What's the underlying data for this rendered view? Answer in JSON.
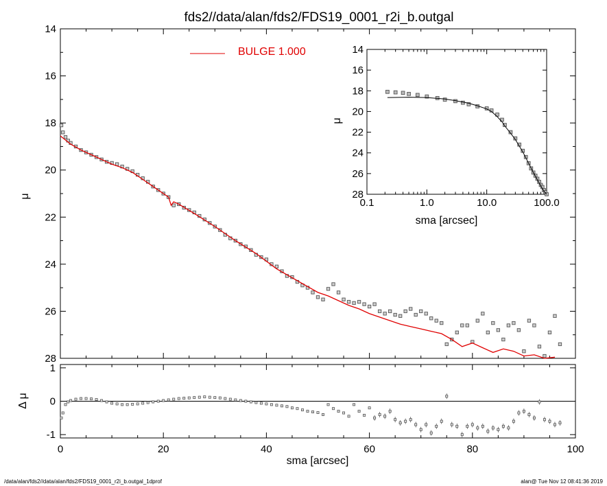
{
  "figure": {
    "title": "fds2//data/alan/fds2/FDS19_0001_r2i_b.outgal",
    "footer_left": "/data/alan/fds2//data/alan/fds2/FDS19_0001_r2i_b.outgal_1dprof",
    "footer_right": "alan@  Tue Nov 12 08:41:36 2019"
  },
  "colors": {
    "data": "#555555",
    "model": "#e00000",
    "axes": "#000000",
    "zero_line": "#000000"
  },
  "chart_data": [
    {
      "type": "scatter",
      "title": "fds2//data/alan/fds2/FDS19_0001_r2i_b.outgal",
      "xlabel": "sma [arcsec]",
      "ylabel": "μ",
      "xlim": [
        0,
        100
      ],
      "ylim": [
        28,
        14
      ],
      "y_inverted": true,
      "xticks": [
        0,
        20,
        40,
        60,
        80,
        100
      ],
      "yticks": [
        14,
        16,
        18,
        20,
        22,
        24,
        26,
        28
      ],
      "legend": {
        "label": "BULGE  1.000",
        "position": "top-center",
        "color": "#e00000"
      },
      "series": [
        {
          "kind": "markers",
          "x": [
            0.2,
            0.5,
            1,
            1.5,
            2,
            3,
            4,
            5,
            6,
            7,
            8,
            9,
            10,
            11,
            12,
            13,
            14,
            15,
            16,
            17,
            18,
            19,
            20,
            21,
            22,
            23,
            24,
            25,
            26,
            27,
            28,
            29,
            30,
            31,
            32,
            33,
            34,
            35,
            36,
            37,
            38,
            39,
            40,
            41,
            42,
            43,
            44,
            45,
            46,
            47,
            48,
            49,
            50,
            51,
            52,
            53,
            54,
            55,
            56,
            57,
            58,
            59,
            60,
            61,
            62,
            63,
            64,
            65,
            66,
            67,
            68,
            69,
            70,
            71,
            72,
            73,
            74,
            75,
            76,
            77,
            78,
            79,
            80,
            81,
            82,
            83,
            84,
            85,
            86,
            87,
            88,
            89,
            90,
            91,
            92,
            93,
            94,
            95,
            96,
            97
          ],
          "y": [
            18.1,
            18.4,
            18.6,
            18.75,
            18.85,
            19.0,
            19.15,
            19.25,
            19.35,
            19.45,
            19.55,
            19.65,
            19.7,
            19.75,
            19.85,
            19.95,
            20.05,
            20.2,
            20.35,
            20.5,
            20.7,
            20.85,
            21.0,
            21.15,
            21.5,
            21.45,
            21.6,
            21.7,
            21.8,
            21.95,
            22.1,
            22.25,
            22.4,
            22.55,
            22.75,
            22.9,
            23.0,
            23.15,
            23.25,
            23.4,
            23.6,
            23.7,
            23.8,
            24.0,
            24.1,
            24.3,
            24.5,
            24.55,
            24.75,
            24.9,
            25.0,
            25.2,
            25.4,
            25.5,
            25.05,
            24.85,
            25.2,
            25.5,
            25.6,
            25.65,
            25.6,
            25.7,
            25.8,
            25.7,
            26.0,
            26.1,
            26.0,
            26.15,
            26.2,
            26.0,
            25.9,
            26.15,
            26.0,
            26.1,
            26.3,
            26.4,
            26.5,
            27.4,
            27.2,
            26.9,
            26.6,
            26.6,
            27.3,
            26.4,
            26.1,
            26.9,
            26.5,
            26.8,
            27.2,
            26.6,
            26.5,
            26.8,
            27.7,
            26.4,
            26.6,
            27.5,
            27.9,
            26.9,
            26.2,
            27.4
          ],
          "source": "data"
        },
        {
          "kind": "line",
          "name": "BULGE  1.000",
          "x": [
            0,
            2,
            4,
            6,
            8,
            10,
            12,
            14,
            16,
            18,
            20,
            21,
            21.5,
            22,
            22.5,
            23,
            26,
            30,
            34,
            38,
            42,
            46,
            50,
            52,
            54,
            56,
            58,
            60,
            62,
            64,
            66,
            68,
            70,
            72,
            74,
            76,
            78,
            80,
            82,
            84,
            86,
            88,
            90,
            92,
            94,
            96
          ],
          "y": [
            18.55,
            18.9,
            19.15,
            19.35,
            19.55,
            19.75,
            19.9,
            20.1,
            20.4,
            20.7,
            21.0,
            21.15,
            21.5,
            21.35,
            21.4,
            21.45,
            21.85,
            22.4,
            23.0,
            23.55,
            24.2,
            24.7,
            25.2,
            25.35,
            25.55,
            25.75,
            25.9,
            26.1,
            26.25,
            26.4,
            26.55,
            26.65,
            26.75,
            26.85,
            26.95,
            27.2,
            27.5,
            27.35,
            27.55,
            27.75,
            27.6,
            27.7,
            27.9,
            27.85,
            28.0,
            27.95
          ],
          "source": "model"
        }
      ]
    },
    {
      "type": "scatter",
      "xlabel": "sma [arcsec]",
      "ylabel": "μ",
      "x_scale": "log",
      "xlim": [
        0.1,
        100
      ],
      "ylim": [
        28,
        14
      ],
      "y_inverted": true,
      "xtick_labels": [
        "0.1",
        "1.0",
        "10.0",
        "100.0"
      ],
      "yticks": [
        14,
        16,
        18,
        20,
        22,
        24,
        26,
        28
      ],
      "series": [
        {
          "kind": "markers",
          "x": [
            0.22,
            0.3,
            0.4,
            0.5,
            0.7,
            1,
            1.5,
            2,
            3,
            4,
            5,
            7,
            10,
            12,
            15,
            18,
            20,
            25,
            30,
            35,
            40,
            45,
            50,
            55,
            60,
            65,
            70,
            75,
            80,
            85,
            90,
            95,
            100
          ],
          "y": [
            18.1,
            18.15,
            18.2,
            18.3,
            18.4,
            18.55,
            18.7,
            18.85,
            19.0,
            19.15,
            19.3,
            19.5,
            19.7,
            19.9,
            20.3,
            20.8,
            21.3,
            22.0,
            22.6,
            23.2,
            23.8,
            24.4,
            25.0,
            25.5,
            25.9,
            26.2,
            26.5,
            26.8,
            27.1,
            27.3,
            27.6,
            27.8,
            28.0
          ],
          "source": "data"
        },
        {
          "kind": "line",
          "x": [
            0.22,
            0.5,
            1,
            2,
            3,
            5,
            7,
            10,
            12,
            15,
            18,
            20,
            25,
            30,
            40,
            50,
            60,
            70,
            80,
            90,
            100
          ],
          "y": [
            18.65,
            18.62,
            18.65,
            18.8,
            18.95,
            19.2,
            19.45,
            19.75,
            20.0,
            20.5,
            21.0,
            21.4,
            22.1,
            22.7,
            23.9,
            25.0,
            25.9,
            26.6,
            27.2,
            27.7,
            28.0
          ],
          "source": "model"
        }
      ]
    },
    {
      "type": "scatter",
      "xlabel": "sma [arcsec]",
      "ylabel": "Δ μ",
      "xlim": [
        0,
        100
      ],
      "ylim": [
        -1.1,
        1.1
      ],
      "xticks": [
        0,
        20,
        40,
        60,
        80,
        100
      ],
      "yticks": [
        -1,
        0,
        1
      ],
      "series": [
        {
          "kind": "markers",
          "x": [
            0.2,
            0.5,
            1,
            1.5,
            2,
            3,
            4,
            5,
            6,
            7,
            8,
            9,
            10,
            11,
            12,
            13,
            14,
            15,
            16,
            17,
            18,
            19,
            20,
            21,
            22,
            23,
            24,
            25,
            26,
            27,
            28,
            29,
            30,
            31,
            32,
            33,
            34,
            35,
            36,
            37,
            38,
            39,
            40,
            41,
            42,
            43,
            44,
            45,
            46,
            47,
            48,
            49,
            50,
            51,
            52,
            53,
            54,
            55,
            56,
            57,
            58,
            59,
            60,
            61,
            62,
            63,
            64,
            65,
            66,
            67,
            68,
            69,
            70,
            71,
            72,
            73,
            74,
            75,
            76,
            77,
            78,
            79,
            80,
            81,
            82,
            83,
            84,
            85,
            86,
            87,
            88,
            89,
            90,
            91,
            92,
            93,
            94,
            95,
            96,
            97
          ],
          "y": [
            -0.5,
            -0.35,
            -0.1,
            -0.02,
            0.02,
            0.06,
            0.08,
            0.08,
            0.07,
            0.05,
            0.02,
            -0.02,
            -0.06,
            -0.08,
            -0.1,
            -0.1,
            -0.09,
            -0.08,
            -0.06,
            -0.04,
            -0.02,
            0.0,
            0.02,
            0.04,
            0.06,
            0.08,
            0.09,
            0.1,
            0.11,
            0.12,
            0.13,
            0.12,
            0.11,
            0.1,
            0.08,
            0.06,
            0.04,
            0.02,
            0.0,
            -0.02,
            -0.04,
            -0.06,
            -0.08,
            -0.1,
            -0.12,
            -0.14,
            -0.16,
            -0.2,
            -0.22,
            -0.26,
            -0.3,
            -0.32,
            -0.34,
            -0.4,
            -0.1,
            -0.22,
            -0.3,
            -0.35,
            -0.45,
            -0.1,
            -0.3,
            -0.42,
            -0.2,
            -0.5,
            -0.4,
            -0.45,
            -0.3,
            -0.55,
            -0.65,
            -0.6,
            -0.55,
            -0.7,
            -0.85,
            -0.7,
            -0.95,
            -0.75,
            -0.6,
            0.15,
            -0.7,
            -0.75,
            -1.0,
            -0.75,
            -0.7,
            -0.8,
            -0.75,
            -0.9,
            -0.8,
            -0.85,
            -0.75,
            -0.8,
            -0.6,
            -0.35,
            -0.3,
            -0.4,
            -0.5,
            -0.02,
            -0.55,
            -0.6,
            -0.7,
            -0.65
          ],
          "source": "residual"
        }
      ]
    }
  ]
}
